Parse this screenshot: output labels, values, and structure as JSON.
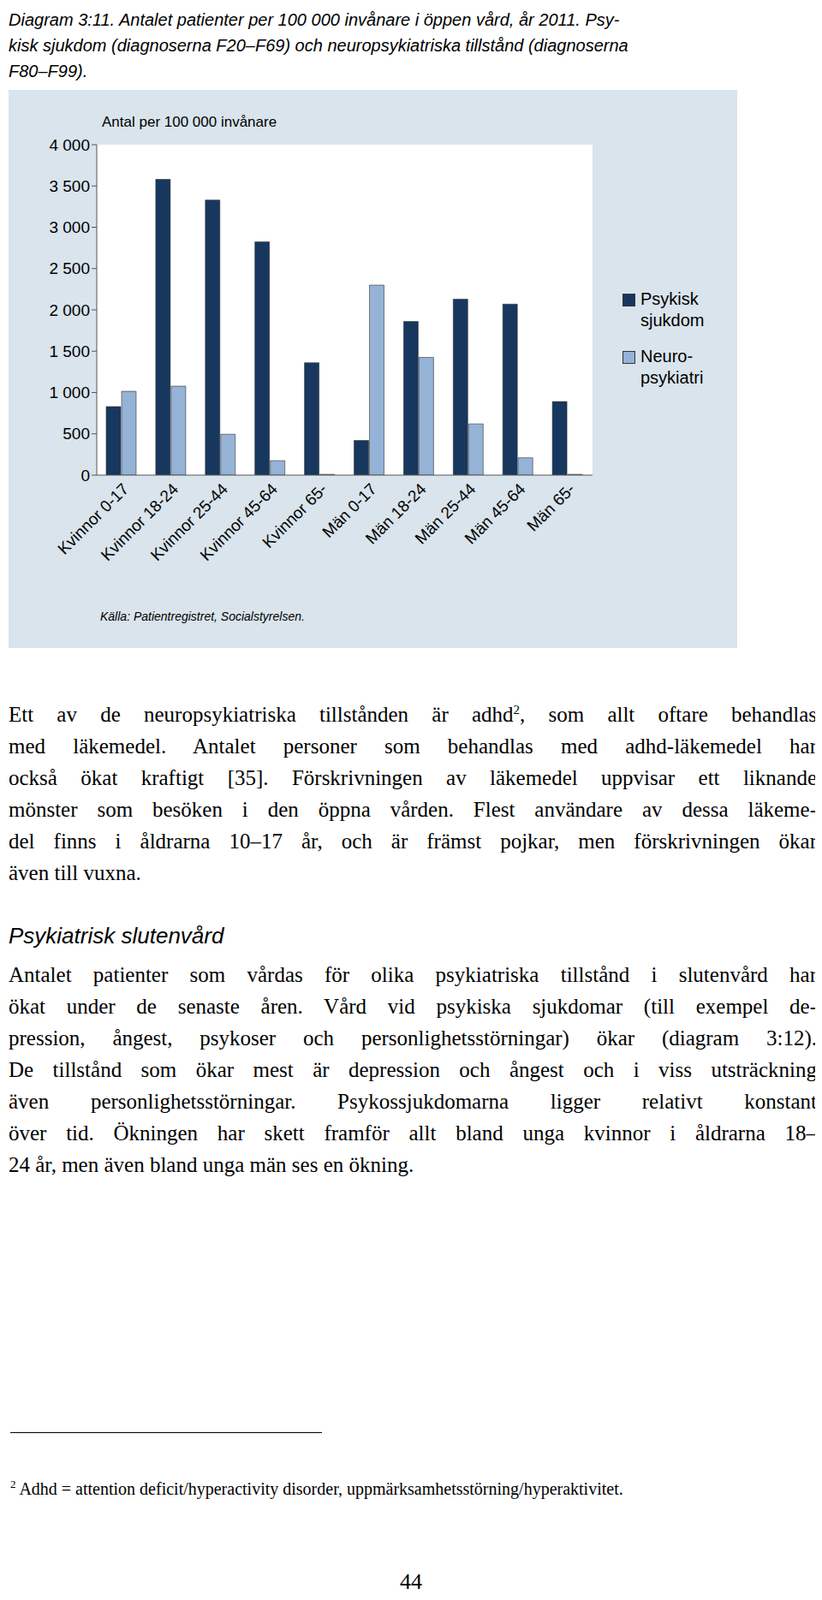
{
  "caption": {
    "lines": [
      "Diagram 3:11. Antalet patienter per 100 000 invånare i öppen vård, år 2011. Psy-",
      "kisk sjukdom (diagnoserna F20–F69) och neuropsykiatriska tillstånd (diagnoserna",
      "F80–F99)."
    ]
  },
  "chart_data": {
    "type": "bar",
    "y_label": "Antal per 100 000 invånare",
    "source": "Källa: Patientregistret, Socialstyrelsen.",
    "categories": [
      "Kvinnor 0-17",
      "Kvinnor 18-24",
      "Kvinnor 25-44",
      "Kvinnor 45-64",
      "Kvinnor 65-",
      "Män 0-17",
      "Män 18-24",
      "Män 25-44",
      "Män 45-64",
      "Män 65-"
    ],
    "series": [
      {
        "name": "Psykisk sjukdom",
        "color": "#17375e",
        "values": [
          830,
          3580,
          3330,
          2825,
          1360,
          420,
          1860,
          2130,
          2070,
          890
        ]
      },
      {
        "name": "Neuro-psykiatri",
        "color": "#95b3d7",
        "values": [
          1015,
          1077,
          495,
          175,
          10,
          2300,
          1425,
          620,
          210,
          10
        ]
      }
    ],
    "ylim": [
      0,
      4000
    ],
    "yticks": [
      0,
      500,
      {
        "value": 1000,
        "label": "1 000"
      },
      {
        "value": 1500,
        "label": "1 500"
      },
      {
        "value": 2000,
        "label": "2 000"
      },
      {
        "value": 2500,
        "label": "2 500"
      },
      {
        "value": 3000,
        "label": "3 000"
      },
      {
        "value": 3500,
        "label": "3 500"
      },
      {
        "value": 4000,
        "label": "4 000"
      }
    ],
    "grid": false,
    "legend": "right"
  },
  "paragraphs": [
    {
      "lines": [
        [
          "Ett av de neuropsykiatriska tillstånden är adhd",
          {
            "sup": "2"
          },
          ", som allt oftare behandlas"
        ],
        [
          "med läkemedel. Antalet personer som behandlas med adhd-läkemedel har"
        ],
        [
          "också ökat kraftigt [35]. Förskrivningen av läkemedel uppvisar ett liknande"
        ],
        [
          "mönster som besöken i den öppna vården. Flest användare av dessa läkeme-"
        ],
        [
          "del finns i åldrarna 10–17 år, och är främst pojkar, men förskrivningen ökar"
        ],
        [
          "även till vuxna."
        ]
      ]
    },
    {
      "heading": "Psykiatrisk slutenvård",
      "lines": [
        [
          "Antalet patienter som vårdas för olika psykiatriska tillstånd i slutenvård har"
        ],
        [
          "ökat under de senaste åren. Vård vid psykiska sjukdomar (till exempel de-"
        ],
        [
          "pression, ångest, psykoser och personlighetsstörningar) ökar (diagram 3:12)."
        ],
        [
          "De tillstånd som ökar mest är depression och ångest och i viss utsträckning"
        ],
        [
          "även personlighetsstörningar. Psykossjukdomarna ligger relativt konstant"
        ],
        [
          "över tid. Ökningen har skett framför allt bland unga kvinnor i åldrarna 18–"
        ],
        [
          "24 år, men även bland unga män ses en ökning."
        ]
      ]
    }
  ],
  "footnote": {
    "sup": "2",
    "text": " Adhd = attention deficit/hyperactivity disorder, uppmärksamhetsstörning/hyperaktivitet."
  },
  "page_number": "44"
}
